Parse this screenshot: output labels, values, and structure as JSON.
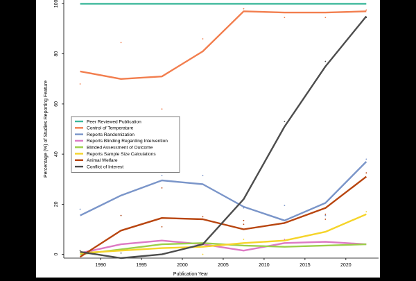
{
  "chart_data": {
    "type": "line",
    "xlabel": "Publication Year",
    "ylabel": "Percentage (%) of Studies Reporting Feature",
    "xlim": [
      1985.5,
      2024
    ],
    "ylim": [
      -1.5,
      101.5
    ],
    "x_ticks": [
      1990,
      1995,
      2000,
      2005,
      2010,
      2015,
      2020
    ],
    "y_ticks": [
      0,
      20,
      40,
      60,
      80,
      100
    ],
    "grid": false,
    "legend_position": "center-left",
    "series": [
      {
        "name": "Peer Reviewed Publication",
        "color": "#3cb89b",
        "x": [
          1987.5,
          1992.5,
          1997.5,
          2002.5,
          2007.5,
          2012.5,
          2017.5,
          2022.5
        ],
        "y": [
          100,
          100,
          100,
          100,
          100,
          100,
          100,
          100
        ]
      },
      {
        "name": "Control of Temperature",
        "color": "#f27e4e",
        "x": [
          1987.5,
          1992.5,
          1997.5,
          2002.5,
          2007.5,
          2012.5,
          2017.5,
          2022.5
        ],
        "y": [
          73,
          70,
          71,
          81,
          97,
          96.5,
          96.5,
          97
        ]
      },
      {
        "name": "Reports Randomization",
        "color": "#7a95c9",
        "x": [
          1987.5,
          1992.5,
          1997.5,
          2002.5,
          2007.5,
          2012.5,
          2017.5,
          2022.5
        ],
        "y": [
          15.5,
          23.5,
          29.5,
          28,
          19,
          13.5,
          20.5,
          37
        ]
      },
      {
        "name": "Reports Blinding Regarding Intervention",
        "color": "#dd7ac4",
        "x": [
          1987.5,
          1992.5,
          1997.5,
          2002.5,
          2007.5,
          2012.5,
          2017.5,
          2022.5
        ],
        "y": [
          0.5,
          4,
          5.5,
          4,
          1.5,
          4.5,
          5,
          4
        ]
      },
      {
        "name": "Blinded Assessment of Outcome",
        "color": "#9ccf4a",
        "x": [
          1987.5,
          1992.5,
          1997.5,
          2002.5,
          2007.5,
          2012.5,
          2017.5,
          2022.5
        ],
        "y": [
          0,
          2,
          4,
          4.5,
          3.5,
          3,
          3.5,
          4
        ]
      },
      {
        "name": "Reports Sample Size Calculations",
        "color": "#f5d42a",
        "x": [
          1987.5,
          1992.5,
          1997.5,
          2002.5,
          2007.5,
          2012.5,
          2017.5,
          2022.5
        ],
        "y": [
          0.5,
          1.5,
          2.5,
          3,
          4.5,
          5.5,
          9,
          16
        ]
      },
      {
        "name": "Animal Welfare",
        "color": "#b8450f",
        "x": [
          1987.5,
          1992.5,
          1997.5,
          2002.5,
          2007.5,
          2012.5,
          2017.5,
          2022.5
        ],
        "y": [
          -1,
          9.5,
          14.5,
          14,
          10,
          12.5,
          18.5,
          31
        ]
      },
      {
        "name": "Conflict of Interest",
        "color": "#4d4d4d",
        "x": [
          1987.5,
          1992.5,
          1997.5,
          2002.5,
          2007.5,
          2012.5,
          2017.5,
          2022.5
        ],
        "y": [
          1,
          -1.5,
          0,
          4,
          22,
          51,
          75,
          95
        ]
      }
    ],
    "points": [
      {
        "x": 1987.5,
        "y": 68,
        "color": "#f27e4e"
      },
      {
        "x": 1992.5,
        "y": 84.5,
        "color": "#f27e4e"
      },
      {
        "x": 1997.5,
        "y": 58,
        "color": "#f27e4e"
      },
      {
        "x": 2002.5,
        "y": 86,
        "color": "#f27e4e"
      },
      {
        "x": 2007.5,
        "y": 98,
        "color": "#f27e4e"
      },
      {
        "x": 2012.5,
        "y": 94.5,
        "color": "#f27e4e"
      },
      {
        "x": 2017.5,
        "y": 94.5,
        "color": "#f27e4e"
      },
      {
        "x": 2022.5,
        "y": 97.5,
        "color": "#f27e4e"
      },
      {
        "x": 1987.5,
        "y": 18,
        "color": "#7a95c9"
      },
      {
        "x": 1992.5,
        "y": 15.5,
        "color": "#7a95c9"
      },
      {
        "x": 1997.5,
        "y": 31.5,
        "color": "#7a95c9"
      },
      {
        "x": 2002.5,
        "y": 31.5,
        "color": "#7a95c9"
      },
      {
        "x": 2007.5,
        "y": 18.5,
        "color": "#7a95c9"
      },
      {
        "x": 2012.5,
        "y": 19.5,
        "color": "#7a95c9"
      },
      {
        "x": 2017.5,
        "y": 15.5,
        "color": "#7a95c9"
      },
      {
        "x": 2022.5,
        "y": 38,
        "color": "#7a95c9"
      },
      {
        "x": 1987.5,
        "y": 1.5,
        "color": "#4d4d4d"
      },
      {
        "x": 1992.5,
        "y": 0.5,
        "color": "#4d4d4d"
      },
      {
        "x": 2012.5,
        "y": 53,
        "color": "#4d4d4d"
      },
      {
        "x": 2017.5,
        "y": 77,
        "color": "#4d4d4d"
      },
      {
        "x": 2022.5,
        "y": 94.5,
        "color": "#4d4d4d"
      },
      {
        "x": 1992.5,
        "y": 15.5,
        "color": "#b8450f"
      },
      {
        "x": 1997.5,
        "y": 26.5,
        "color": "#b8450f"
      },
      {
        "x": 1997.5,
        "y": 11,
        "color": "#b8450f"
      },
      {
        "x": 2002.5,
        "y": 15,
        "color": "#b8450f"
      },
      {
        "x": 2007.5,
        "y": 13.5,
        "color": "#b8450f"
      },
      {
        "x": 2007.5,
        "y": 12,
        "color": "#b8450f"
      },
      {
        "x": 2017.5,
        "y": 14,
        "color": "#b8450f"
      },
      {
        "x": 2017.5,
        "y": 16,
        "color": "#b8450f"
      },
      {
        "x": 2022.5,
        "y": 32.5,
        "color": "#b8450f"
      },
      {
        "x": 2022.5,
        "y": 17,
        "color": "#f5d42a"
      },
      {
        "x": 2002.5,
        "y": 0,
        "color": "#f5d42a"
      },
      {
        "x": 2007.5,
        "y": 6,
        "color": "#f5d42a"
      },
      {
        "x": 2012.5,
        "y": 6,
        "color": "#dd7ac4"
      }
    ]
  }
}
